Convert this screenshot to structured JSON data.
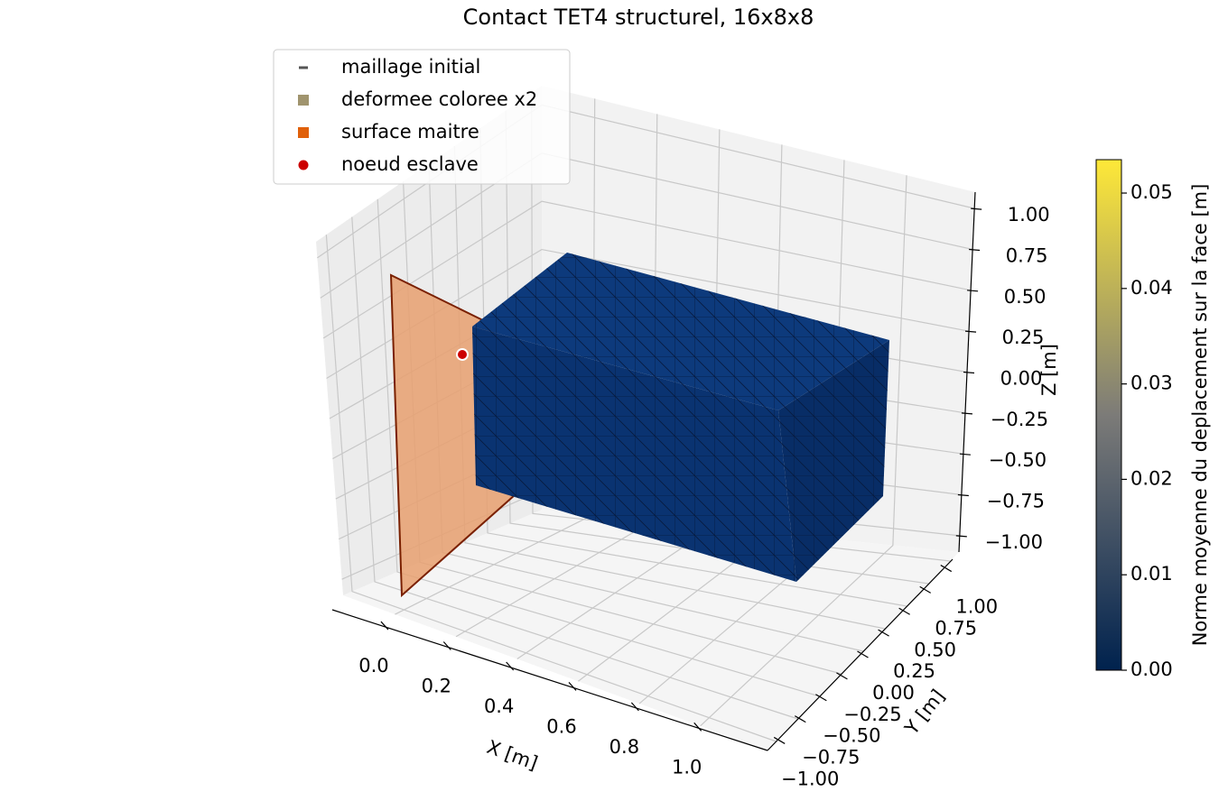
{
  "chart_data": {
    "type": "mesh3d",
    "title": "Contact TET4 structurel, 16x8x8",
    "xlabel": "X [m]",
    "ylabel": "Y [m]",
    "zlabel": "Z [m]",
    "xlim": [
      -0.17,
      1.22
    ],
    "xticks": [
      {
        "value": 0,
        "label": "0.0"
      },
      0.2,
      0.4,
      0.6,
      0.8,
      {
        "value": 1,
        "label": "1.0"
      }
    ],
    "ylim": [
      -1.1,
      1.1
    ],
    "yticks": [
      {
        "value": -1,
        "label": "−1.00"
      },
      {
        "value": -0.75,
        "label": "−0.75"
      },
      {
        "value": -0.5,
        "label": "−0.50"
      },
      {
        "value": -0.25,
        "label": "−0.25"
      },
      {
        "value": 0,
        "label": "0.00"
      },
      0.25,
      {
        "value": 0.5,
        "label": "0.50"
      },
      0.75,
      {
        "value": 1,
        "label": "1.00"
      }
    ],
    "zlim": [
      -1.1,
      1.1
    ],
    "zticks": [
      {
        "value": -1,
        "label": "−1.00"
      },
      {
        "value": -0.75,
        "label": "−0.75"
      },
      {
        "value": -0.5,
        "label": "−0.50"
      },
      {
        "value": -0.25,
        "label": "−0.25"
      },
      {
        "value": 0,
        "label": "0.00"
      },
      0.25,
      {
        "value": 0.5,
        "label": "0.50"
      },
      0.75,
      {
        "value": 1,
        "label": "1.00"
      }
    ],
    "grid": true,
    "legend": [
      {
        "name": "maillage initial",
        "color": "#555555"
      },
      {
        "name": "deformee coloree x2",
        "color": "#a0946e"
      },
      {
        "name": "surface maitre",
        "color": "#e0600a"
      },
      {
        "name": "noeud esclave",
        "color": "#cc0000"
      }
    ],
    "colorbar": {
      "label": "Norme moyenne du deplacement sur la face [m]",
      "lim": [
        0,
        0.0535
      ],
      "ticks": [
        {
          "value": 0,
          "label": "0.00"
        },
        0.01,
        0.02,
        0.03,
        0.04,
        0.05
      ],
      "colors": [
        "#00224e",
        "#7c7b78",
        "#fee838"
      ]
    }
  }
}
